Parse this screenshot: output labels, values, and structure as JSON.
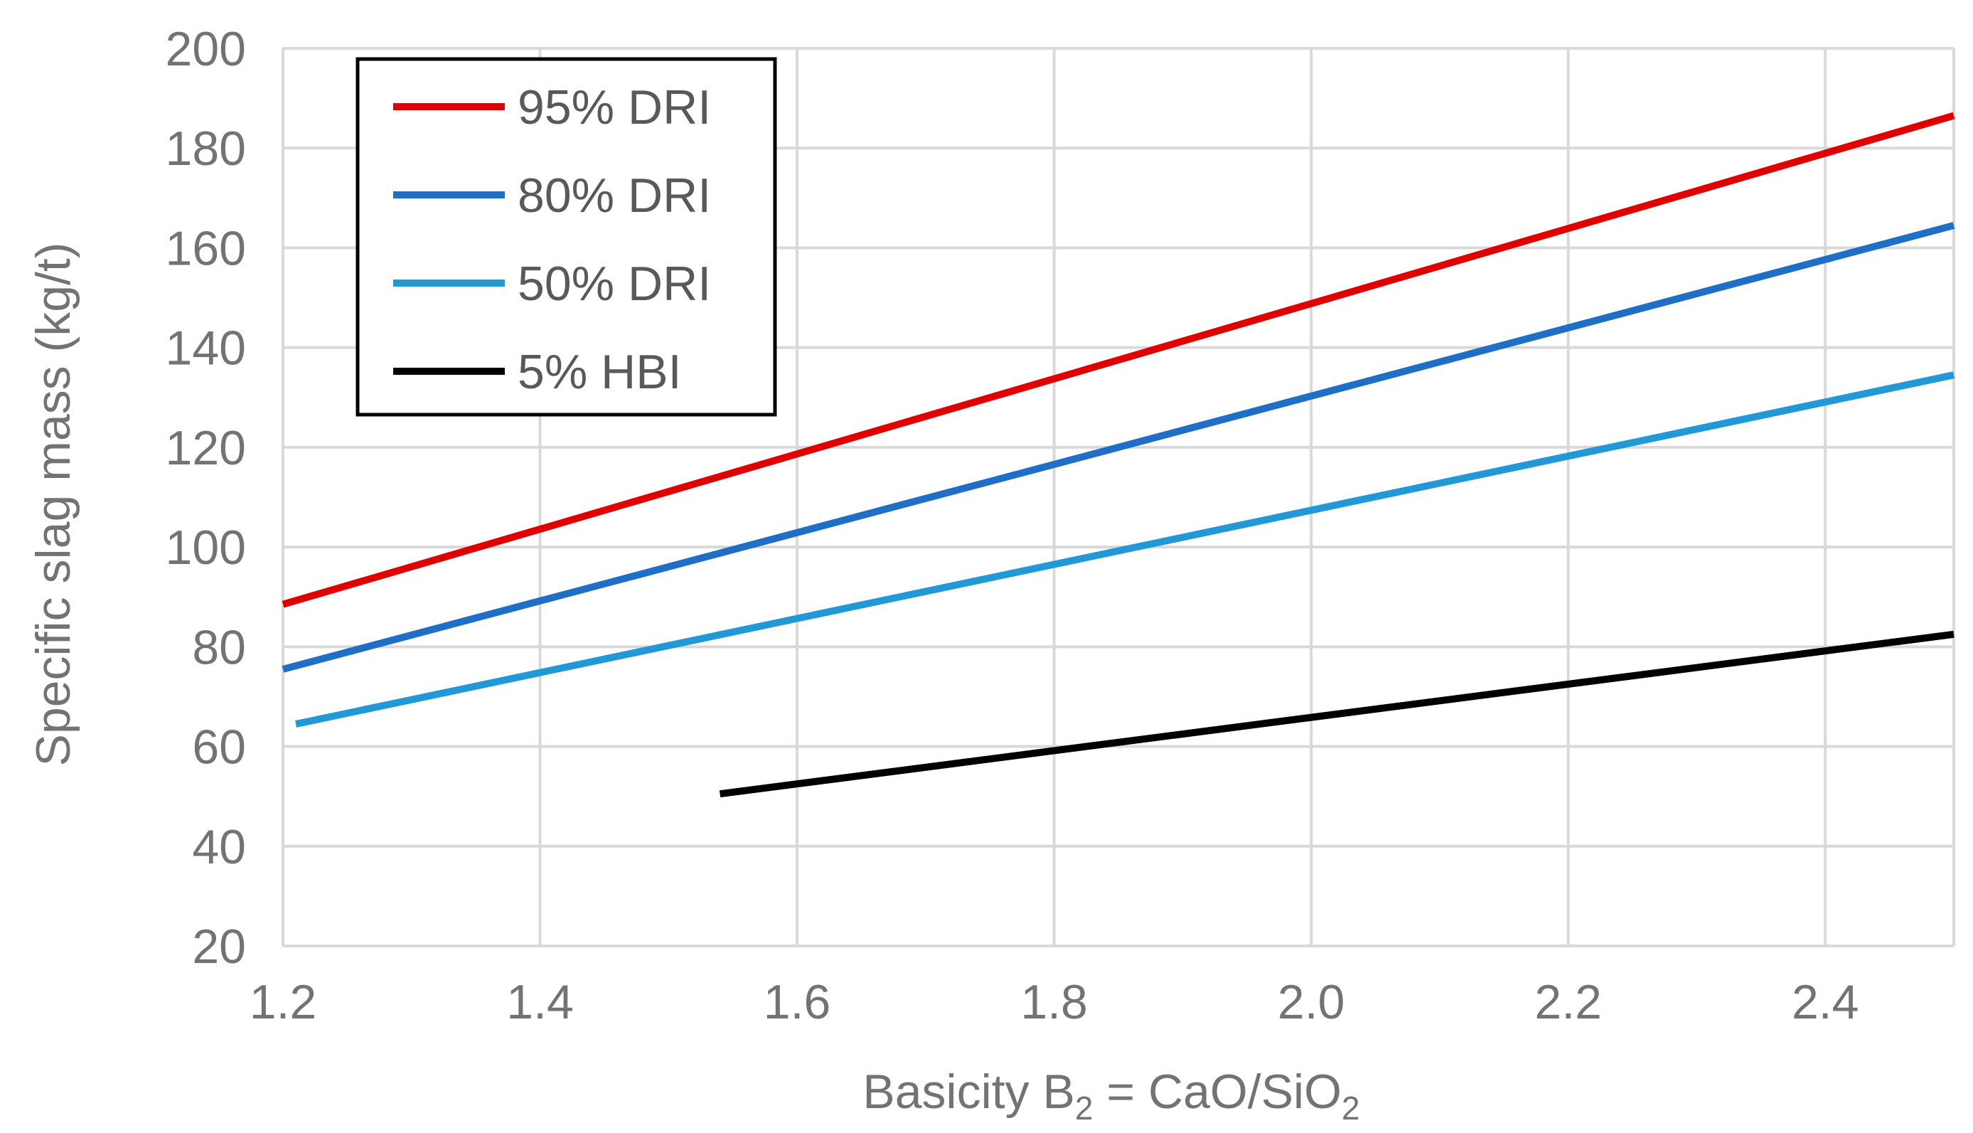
{
  "chart_data": {
    "type": "line",
    "title": "",
    "xlabel": "Basicity B",
    "xlabel_sub": "2",
    "xlabel_rest": " = CaO/SiO",
    "xlabel_sub2": "2",
    "ylabel": "Specific slag mass (kg/t)",
    "xlim": [
      1.2,
      2.5
    ],
    "ylim": [
      20,
      200
    ],
    "x_ticks": [
      1.2,
      1.4,
      1.6,
      1.8,
      2.0,
      2.2,
      2.4
    ],
    "x_tick_labels": [
      "1.2",
      "1.4",
      "1.6",
      "1.8",
      "2.0",
      "2.2",
      "2.4"
    ],
    "y_ticks": [
      20,
      40,
      60,
      80,
      100,
      120,
      140,
      160,
      180,
      200
    ],
    "y_tick_labels": [
      "20",
      "40",
      "60",
      "80",
      "100",
      "120",
      "140",
      "160",
      "180",
      "200"
    ],
    "grid": true,
    "legend_position": "top-left",
    "series": [
      {
        "name": "95% DRI",
        "color": "#e00000",
        "x": [
          1.2,
          2.5
        ],
        "values": [
          88.5,
          186.5
        ]
      },
      {
        "name": "80% DRI",
        "color": "#1f6fc6",
        "x": [
          1.2,
          2.5
        ],
        "values": [
          75.5,
          164.5
        ]
      },
      {
        "name": "50% DRI",
        "color": "#2398d6",
        "x": [
          1.21,
          2.5
        ],
        "values": [
          64.5,
          134.5
        ]
      },
      {
        "name": "5% HBI",
        "color": "#000000",
        "x": [
          1.54,
          2.5
        ],
        "values": [
          50.5,
          82.5
        ]
      }
    ]
  }
}
